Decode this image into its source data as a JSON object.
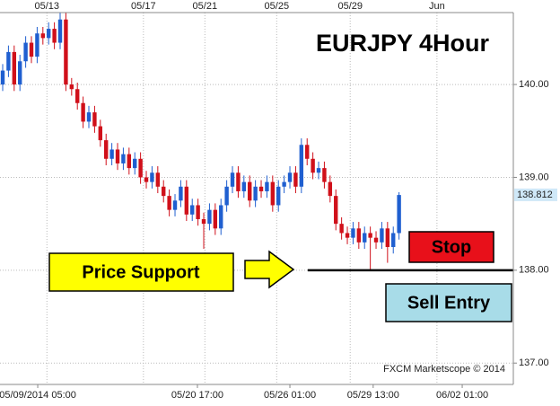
{
  "chart_data": {
    "type": "candlestick",
    "title": "EURJPY 4Hour",
    "open": [
      140.0,
      140.15,
      140.35,
      140.0,
      140.25,
      140.45,
      140.3,
      140.55,
      140.5,
      140.6,
      140.45,
      140.7,
      140.0,
      139.95,
      139.8,
      139.6,
      139.7,
      139.55,
      139.4,
      139.2,
      139.3,
      139.15,
      139.25,
      139.1,
      139.2,
      139.0,
      138.95,
      139.05,
      138.9,
      138.8,
      138.65,
      138.75,
      138.9,
      138.6,
      138.7,
      138.55,
      138.5,
      138.65,
      138.45,
      138.7,
      138.9,
      139.05,
      138.85,
      138.95,
      138.75,
      138.9,
      138.85,
      138.95,
      138.7,
      138.9,
      138.95,
      139.05,
      138.9,
      139.35,
      139.2,
      139.05,
      139.1,
      138.95,
      138.8,
      138.5,
      138.4,
      138.35,
      138.45,
      138.3,
      138.4,
      138.35,
      138.3,
      138.45,
      138.25,
      138.4
    ],
    "high": [
      140.22,
      140.42,
      140.42,
      140.32,
      140.52,
      140.52,
      140.62,
      140.62,
      140.67,
      140.67,
      140.77,
      140.77,
      140.07,
      140.02,
      139.87,
      139.77,
      139.77,
      139.62,
      139.47,
      139.37,
      139.37,
      139.32,
      139.32,
      139.27,
      139.27,
      139.07,
      139.12,
      139.12,
      138.97,
      138.87,
      138.82,
      138.97,
      138.97,
      138.77,
      138.77,
      138.62,
      138.72,
      138.72,
      138.77,
      138.97,
      139.12,
      139.12,
      139.02,
      139.02,
      138.97,
      138.97,
      139.02,
      139.02,
      138.97,
      139.02,
      139.12,
      139.12,
      139.42,
      139.42,
      139.27,
      139.17,
      139.17,
      139.02,
      138.87,
      138.57,
      138.47,
      138.52,
      138.52,
      138.47,
      138.47,
      138.42,
      138.52,
      138.52,
      138.47,
      138.84
    ],
    "low": [
      139.93,
      140.08,
      139.93,
      139.93,
      140.18,
      140.23,
      140.23,
      140.43,
      140.43,
      140.38,
      140.38,
      139.93,
      139.88,
      139.73,
      139.53,
      139.53,
      139.48,
      139.33,
      139.13,
      139.13,
      139.08,
      139.08,
      139.03,
      139.03,
      138.93,
      138.88,
      138.88,
      138.83,
      138.73,
      138.58,
      138.58,
      138.68,
      138.53,
      138.53,
      138.48,
      138.23,
      138.43,
      138.38,
      138.38,
      138.63,
      138.83,
      138.78,
      138.78,
      138.68,
      138.68,
      138.78,
      138.78,
      138.63,
      138.63,
      138.83,
      138.88,
      138.83,
      138.83,
      139.13,
      138.98,
      138.98,
      138.88,
      138.73,
      138.43,
      138.33,
      138.28,
      138.28,
      138.23,
      138.23,
      138.0,
      138.23,
      138.23,
      138.08,
      138.18,
      138.33
    ],
    "close": [
      140.15,
      140.35,
      140.0,
      140.25,
      140.45,
      140.3,
      140.55,
      140.5,
      140.6,
      140.45,
      140.7,
      140.0,
      139.95,
      139.8,
      139.6,
      139.7,
      139.55,
      139.4,
      139.2,
      139.3,
      139.15,
      139.25,
      139.1,
      139.2,
      139.0,
      138.95,
      139.05,
      138.9,
      138.8,
      138.65,
      138.75,
      138.9,
      138.6,
      138.7,
      138.55,
      138.5,
      138.65,
      138.45,
      138.7,
      138.9,
      139.05,
      138.85,
      138.95,
      138.75,
      138.9,
      138.85,
      138.95,
      138.7,
      138.9,
      138.95,
      139.05,
      138.9,
      139.35,
      139.2,
      139.05,
      139.1,
      138.95,
      138.8,
      138.5,
      138.4,
      138.35,
      138.45,
      138.3,
      138.4,
      138.35,
      138.3,
      138.45,
      138.25,
      138.4,
      138.81
    ],
    "up_color": "#1f5fd0",
    "down_color": "#d0101a",
    "xlim": [
      -0.47,
      88.9
    ],
    "top_xticks": [
      {
        "value": 7.7,
        "label": "05/13"
      },
      {
        "value": 24.5,
        "label": "05/17"
      },
      {
        "value": 35.2,
        "label": "05/21"
      },
      {
        "value": 47.7,
        "label": "05/25"
      },
      {
        "value": 60.5,
        "label": "05/29"
      },
      {
        "value": 75.6,
        "label": "Jun"
      }
    ],
    "xticks": [
      {
        "value": 6.1,
        "label": "05/09/2014 05:00"
      },
      {
        "value": 33.9,
        "label": "05/20 17:00"
      },
      {
        "value": 50,
        "label": "05/26 01:00"
      },
      {
        "value": 64.5,
        "label": "05/29 13:00"
      },
      {
        "value": 80,
        "label": "06/02 01:00"
      }
    ],
    "ylim": [
      136.77,
      140.91
    ],
    "yticks": [
      {
        "value": 137,
        "label": "137.00"
      },
      {
        "value": 138,
        "label": "138.00"
      },
      {
        "value": 139,
        "label": "139.00"
      },
      {
        "value": 140,
        "label": "140.00"
      }
    ],
    "last_price": 138.812,
    "support_line": {
      "y": 138,
      "x_start": 53.1
    },
    "grid": true,
    "annotations": {
      "support": "Price Support",
      "stop": "Stop",
      "entry": "Sell Entry",
      "credit": "FXCM Marketscope © 2014"
    }
  }
}
